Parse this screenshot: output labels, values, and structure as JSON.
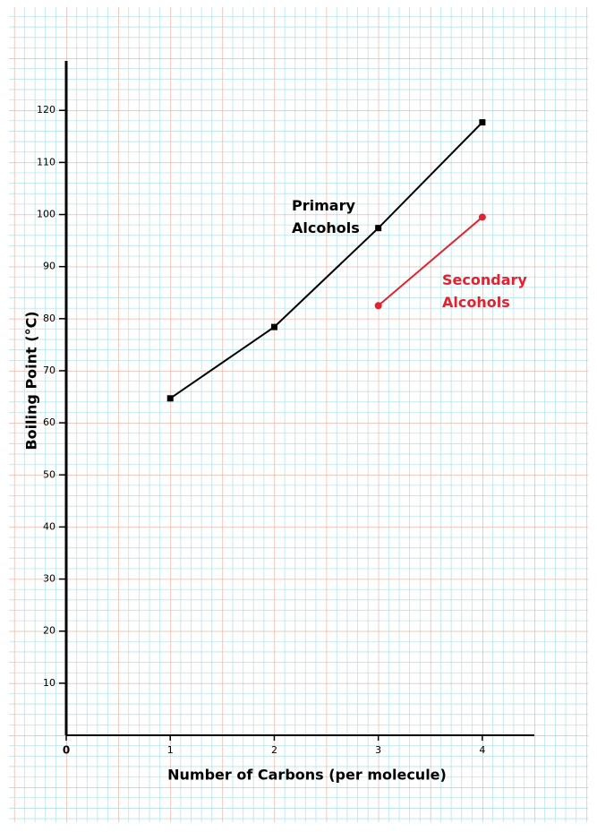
{
  "chart_data": {
    "type": "line",
    "x_label": "Number of Carbons (per molecule)",
    "y_label": "Boiling Point (°C)",
    "x": [
      1,
      2,
      3,
      4
    ],
    "series": [
      {
        "name": "Primary Alcohols",
        "color": "#000000",
        "values": [
          64.7,
          78.4,
          97.4,
          117.7
        ]
      },
      {
        "name": "Secondary Alcohols",
        "color": "#e3222f",
        "values": [
          null,
          null,
          82.5,
          99.5
        ]
      }
    ],
    "xlim": [
      0,
      4.5
    ],
    "ylim": [
      0,
      129.5
    ],
    "xticks": [
      0,
      1,
      2,
      3,
      4
    ],
    "yticks": [
      10,
      20,
      30,
      40,
      50,
      60,
      70,
      80,
      90,
      100,
      110,
      120
    ],
    "grid": true
  }
}
